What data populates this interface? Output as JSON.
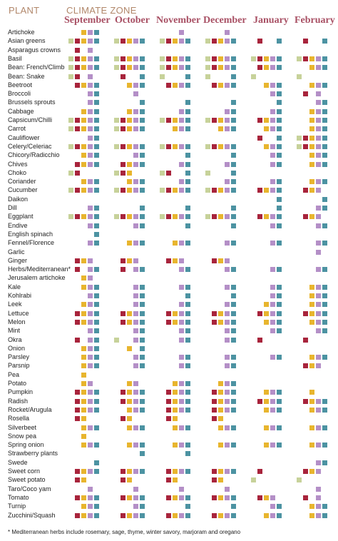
{
  "headers": {
    "plant": "PLANT",
    "climate_zone": "CLIMATE ZONE"
  },
  "months": [
    "September",
    "October",
    "November",
    "December",
    "January",
    "February"
  ],
  "zone_colors": [
    "#c7d29a",
    "#a8243c",
    "#e8b52e",
    "#b48fc7",
    "#4c93a2"
  ],
  "plants": [
    {
      "name": "Artichoke",
      "z": [
        [
          2,
          3,
          4
        ],
        [],
        [
          3
        ],
        [
          3
        ],
        [],
        []
      ]
    },
    {
      "name": "Asian greens",
      "z": [
        [
          0,
          1,
          2,
          3,
          4
        ],
        [
          0,
          1,
          2,
          3,
          4
        ],
        [
          0,
          1,
          2,
          3,
          4
        ],
        [
          0,
          1,
          2,
          3,
          4
        ],
        [
          1,
          4
        ],
        [
          1,
          4
        ]
      ]
    },
    {
      "name": "Asparagus crowns",
      "z": [
        [
          1,
          3
        ],
        [],
        [],
        [],
        [],
        []
      ]
    },
    {
      "name": "Basil",
      "z": [
        [
          0,
          1,
          2,
          3,
          4
        ],
        [
          0,
          1,
          2,
          3,
          4
        ],
        [
          0,
          1,
          2,
          3,
          4
        ],
        [
          0,
          1,
          2,
          3,
          4
        ],
        [
          0,
          1,
          2,
          3,
          4
        ],
        [
          0,
          1,
          2,
          3,
          4
        ]
      ]
    },
    {
      "name": "Bean: French/Climb",
      "z": [
        [
          0,
          1,
          2,
          3,
          4
        ],
        [
          0,
          1,
          2,
          3,
          4
        ],
        [
          0,
          1,
          2,
          3,
          4
        ],
        [
          0,
          1,
          2,
          3,
          4
        ],
        [
          1,
          2,
          3,
          4
        ],
        [
          2,
          3,
          4
        ]
      ]
    },
    {
      "name": "Bean: Snake",
      "z": [
        [
          0,
          1,
          3
        ],
        [
          1,
          4
        ],
        [
          0,
          4
        ],
        [
          0,
          4
        ],
        [
          0
        ],
        [
          0
        ]
      ]
    },
    {
      "name": "Beetroot",
      "z": [
        [
          1,
          2,
          3,
          4
        ],
        [
          2,
          3,
          4
        ],
        [
          1,
          2,
          3,
          4
        ],
        [
          1,
          2,
          3,
          4
        ],
        [
          2,
          3,
          4
        ],
        [
          2,
          3,
          4
        ]
      ]
    },
    {
      "name": "Broccoli",
      "z": [
        [
          3,
          4
        ],
        [
          3
        ],
        [],
        [],
        [
          3,
          4
        ],
        [
          1,
          3
        ]
      ]
    },
    {
      "name": "Brussels sprouts",
      "z": [
        [
          3,
          4
        ],
        [
          4
        ],
        [
          4
        ],
        [
          4
        ],
        [
          4
        ],
        [
          3,
          4
        ]
      ]
    },
    {
      "name": "Cabbage",
      "z": [
        [
          2,
          3,
          4
        ],
        [
          2,
          3,
          4
        ],
        [
          3,
          4
        ],
        [
          3,
          4
        ],
        [
          3,
          4
        ],
        [
          2,
          3,
          4
        ]
      ]
    },
    {
      "name": "Capsicum/Chilli",
      "z": [
        [
          0,
          1,
          2,
          3,
          4
        ],
        [
          0,
          1,
          2,
          3,
          4
        ],
        [
          0,
          1,
          2,
          3,
          4
        ],
        [
          0,
          1,
          2,
          3,
          4
        ],
        [
          1,
          2,
          3,
          4
        ],
        [
          2,
          3,
          4
        ]
      ]
    },
    {
      "name": "Carrot",
      "z": [
        [
          0,
          1,
          2,
          3,
          4
        ],
        [
          0,
          1,
          2,
          3,
          4
        ],
        [
          2,
          3,
          4
        ],
        [
          2,
          3,
          4
        ],
        [
          2,
          3,
          4
        ],
        [
          2,
          3,
          4
        ]
      ]
    },
    {
      "name": "Cauliflower",
      "z": [
        [
          3,
          4
        ],
        [],
        [],
        [],
        [
          1,
          4
        ],
        [
          0,
          1,
          2,
          3,
          4
        ]
      ]
    },
    {
      "name": "Celery/Celeriac",
      "z": [
        [
          0,
          1,
          2,
          3,
          4
        ],
        [
          0,
          1,
          2,
          3,
          4
        ],
        [
          0,
          1,
          2,
          3,
          4
        ],
        [
          0,
          1,
          2,
          3,
          4
        ],
        [
          2,
          3,
          4
        ],
        [
          0,
          1,
          2,
          3,
          4
        ]
      ]
    },
    {
      "name": "Chicory/Radicchio",
      "z": [
        [
          2,
          3,
          4
        ],
        [
          3,
          4
        ],
        [
          4
        ],
        [
          4
        ],
        [
          3,
          4
        ],
        [
          2,
          3,
          4
        ]
      ]
    },
    {
      "name": "Chives",
      "z": [
        [
          1,
          2,
          3,
          4
        ],
        [
          1,
          2,
          3,
          4
        ],
        [
          3,
          4
        ],
        [
          3,
          4
        ],
        [
          3,
          4
        ],
        [
          2,
          3,
          4
        ]
      ]
    },
    {
      "name": "Choko",
      "z": [
        [
          0,
          1
        ],
        [
          0,
          1,
          2
        ],
        [
          0,
          1,
          4
        ],
        [
          0,
          4
        ],
        [],
        []
      ]
    },
    {
      "name": "Coriander",
      "z": [
        [
          2,
          3,
          4
        ],
        [
          2,
          3,
          4
        ],
        [
          3,
          4
        ],
        [
          3,
          4
        ],
        [
          3,
          4
        ],
        [
          2,
          3,
          4
        ]
      ]
    },
    {
      "name": "Cucumber",
      "z": [
        [
          0,
          1,
          2,
          3,
          4
        ],
        [
          0,
          1,
          2,
          3,
          4
        ],
        [
          0,
          1,
          2,
          3,
          4
        ],
        [
          0,
          1,
          2,
          3,
          4
        ],
        [
          1,
          2,
          3,
          4
        ],
        [
          1,
          2,
          3
        ]
      ]
    },
    {
      "name": "Daikon",
      "z": [
        [],
        [],
        [],
        [],
        [
          4
        ],
        [
          4
        ]
      ]
    },
    {
      "name": "Dill",
      "z": [
        [
          3,
          4
        ],
        [
          4
        ],
        [
          4
        ],
        [
          4
        ],
        [
          4
        ],
        [
          3,
          4
        ]
      ]
    },
    {
      "name": "Eggplant",
      "z": [
        [
          0,
          1,
          2,
          3,
          4
        ],
        [
          0,
          1,
          2,
          3,
          4
        ],
        [
          0,
          1,
          2,
          3,
          4
        ],
        [
          0,
          1,
          2,
          3,
          4
        ],
        [
          1,
          2,
          3,
          4
        ],
        [
          1,
          2,
          3
        ]
      ]
    },
    {
      "name": "Endive",
      "z": [
        [
          3,
          4
        ],
        [
          3,
          4
        ],
        [
          4
        ],
        [
          4
        ],
        [
          3,
          4
        ],
        [
          3,
          4
        ]
      ]
    },
    {
      "name": "English spinach",
      "z": [
        [
          4
        ],
        [],
        [],
        [],
        [],
        []
      ]
    },
    {
      "name": "Fennel/Florence",
      "z": [
        [
          3,
          4
        ],
        [
          2,
          3,
          4
        ],
        [
          2,
          3,
          4
        ],
        [
          3,
          4
        ],
        [
          3,
          4
        ],
        [
          3,
          4
        ]
      ]
    },
    {
      "name": "Garlic",
      "z": [
        [],
        [],
        [],
        [],
        [],
        [
          3
        ]
      ]
    },
    {
      "name": "Ginger",
      "z": [
        [
          1,
          2,
          3
        ],
        [
          1,
          2,
          3
        ],
        [
          1,
          2,
          3
        ],
        [
          1,
          2,
          3
        ],
        [],
        []
      ]
    },
    {
      "name": "Herbs/Mediterranean*",
      "z": [
        [
          1,
          3,
          4
        ],
        [
          1,
          3,
          4
        ],
        [
          3,
          4
        ],
        [
          3,
          4
        ],
        [
          3,
          4
        ],
        [
          3,
          4
        ]
      ]
    },
    {
      "name": "Jerusalem artichoke",
      "z": [
        [
          2,
          3
        ],
        [],
        [],
        [],
        [],
        []
      ]
    },
    {
      "name": "Kale",
      "z": [
        [
          2,
          3,
          4
        ],
        [
          3,
          4
        ],
        [
          3,
          4
        ],
        [
          3,
          4
        ],
        [
          3,
          4
        ],
        [
          2,
          3,
          4
        ]
      ]
    },
    {
      "name": "Kohlrabi",
      "z": [
        [
          3,
          4
        ],
        [
          3,
          4
        ],
        [
          4
        ],
        [
          4
        ],
        [
          3,
          4
        ],
        [
          2,
          3,
          4
        ]
      ]
    },
    {
      "name": "Leek",
      "z": [
        [
          2,
          3,
          4
        ],
        [
          3,
          4
        ],
        [
          3,
          4
        ],
        [
          3,
          4
        ],
        [
          2,
          3,
          4
        ],
        [
          2,
          3,
          4
        ]
      ]
    },
    {
      "name": "Lettuce",
      "z": [
        [
          1,
          2,
          3,
          4
        ],
        [
          1,
          2,
          3,
          4
        ],
        [
          1,
          2,
          3,
          4
        ],
        [
          1,
          2,
          3,
          4
        ],
        [
          1,
          2,
          3,
          4
        ],
        [
          1,
          2,
          3,
          4
        ]
      ]
    },
    {
      "name": "Melon",
      "z": [
        [
          1,
          2,
          3,
          4
        ],
        [
          1,
          2,
          3,
          4
        ],
        [
          1,
          2,
          3,
          4
        ],
        [
          1,
          2,
          3,
          4
        ],
        [
          2,
          3,
          4
        ],
        [
          2,
          3,
          4
        ]
      ]
    },
    {
      "name": "Mint",
      "z": [
        [
          3,
          4
        ],
        [
          3,
          4
        ],
        [
          3,
          4
        ],
        [
          3,
          4
        ],
        [
          3,
          4
        ],
        [
          3,
          4
        ]
      ]
    },
    {
      "name": "Okra",
      "z": [
        [
          1,
          3,
          4
        ],
        [
          0,
          3,
          4
        ],
        [
          3,
          4
        ],
        [
          3,
          4
        ],
        [
          1
        ],
        [
          1
        ]
      ]
    },
    {
      "name": "Onion",
      "z": [
        [
          2,
          3,
          4
        ],
        [
          2,
          4
        ],
        [],
        [],
        [],
        []
      ]
    },
    {
      "name": "Parsley",
      "z": [
        [
          2,
          3,
          4
        ],
        [
          3,
          4
        ],
        [
          3,
          4
        ],
        [
          3,
          4
        ],
        [
          3,
          4
        ],
        [
          2,
          3,
          4
        ]
      ]
    },
    {
      "name": "Parsnip",
      "z": [
        [
          2,
          3,
          4
        ],
        [
          3,
          4
        ],
        [
          3,
          4
        ],
        [
          3,
          4
        ],
        [],
        [
          1,
          2,
          3
        ]
      ]
    },
    {
      "name": "Pea",
      "z": [
        [
          2
        ],
        [],
        [],
        [],
        [],
        []
      ]
    },
    {
      "name": "Potato",
      "z": [
        [
          2,
          3
        ],
        [
          2,
          3
        ],
        [
          2,
          3,
          4
        ],
        [
          2,
          3,
          4
        ],
        [],
        []
      ]
    },
    {
      "name": "Pumpkin",
      "z": [
        [
          1,
          2,
          3,
          4
        ],
        [
          1,
          2,
          3,
          4
        ],
        [
          1,
          2,
          3,
          4
        ],
        [
          1,
          2,
          3,
          4
        ],
        [
          2,
          3,
          4
        ],
        [
          2
        ]
      ]
    },
    {
      "name": "Radish",
      "z": [
        [
          1,
          2,
          3,
          4
        ],
        [
          1,
          2,
          3,
          4
        ],
        [
          1,
          2,
          3,
          4
        ],
        [
          1,
          2,
          3,
          4
        ],
        [
          1,
          2,
          3,
          4
        ],
        [
          1,
          2,
          3,
          4
        ]
      ]
    },
    {
      "name": "Rocket/Arugula",
      "z": [
        [
          1,
          2,
          3,
          4
        ],
        [
          2,
          3,
          4
        ],
        [
          1,
          2,
          3,
          4
        ],
        [
          1,
          2,
          3,
          4
        ],
        [
          2,
          3,
          4
        ],
        [
          2,
          3,
          4
        ]
      ]
    },
    {
      "name": "Rosella",
      "z": [
        [
          1,
          2
        ],
        [
          1,
          2
        ],
        [
          1,
          2
        ],
        [
          1,
          2
        ],
        [],
        []
      ]
    },
    {
      "name": "Silverbeet",
      "z": [
        [
          2,
          3,
          4
        ],
        [
          2,
          3,
          4
        ],
        [
          2,
          3,
          4
        ],
        [
          2,
          3,
          4
        ],
        [
          2,
          3,
          4
        ],
        [
          2,
          3,
          4
        ]
      ]
    },
    {
      "name": "Snow pea",
      "z": [
        [
          2
        ],
        [],
        [],
        [],
        [],
        []
      ]
    },
    {
      "name": "Spring onion",
      "z": [
        [
          2,
          3,
          4
        ],
        [
          2,
          3,
          4
        ],
        [
          2,
          3,
          4
        ],
        [
          2,
          3,
          4
        ],
        [
          2,
          3,
          4
        ],
        [
          2,
          3,
          4
        ]
      ]
    },
    {
      "name": "Strawberry plants",
      "z": [
        [],
        [
          4
        ],
        [
          4
        ],
        [],
        [],
        []
      ]
    },
    {
      "name": "Swede",
      "z": [
        [
          4
        ],
        [],
        [],
        [],
        [],
        [
          3,
          4
        ]
      ]
    },
    {
      "name": "Sweet corn",
      "z": [
        [
          1,
          2,
          3,
          4
        ],
        [
          1,
          2,
          3,
          4
        ],
        [
          1,
          2,
          3,
          4
        ],
        [
          1,
          2,
          3,
          4
        ],
        [
          1
        ],
        [
          1,
          2,
          3
        ]
      ]
    },
    {
      "name": "Sweet potato",
      "z": [
        [
          1,
          2
        ],
        [
          1,
          2
        ],
        [
          1,
          2
        ],
        [
          1,
          2
        ],
        [
          0
        ],
        [
          0
        ]
      ]
    },
    {
      "name": "Taro/Coco yam",
      "z": [
        [
          3
        ],
        [
          3
        ],
        [
          3
        ],
        [
          3
        ],
        [],
        [
          3
        ]
      ]
    },
    {
      "name": "Tomato",
      "z": [
        [
          1,
          2,
          3,
          4
        ],
        [
          1,
          2,
          3,
          4
        ],
        [
          1,
          2,
          3,
          4
        ],
        [
          1,
          2,
          3,
          4
        ],
        [
          1,
          2,
          3
        ],
        [
          1,
          3
        ]
      ]
    },
    {
      "name": "Turnip",
      "z": [
        [
          2,
          3,
          4
        ],
        [
          3,
          4
        ],
        [
          4
        ],
        [
          4
        ],
        [
          3,
          4
        ],
        [
          2,
          3,
          4
        ]
      ]
    },
    {
      "name": "Zucchini/Squash",
      "z": [
        [
          1,
          2,
          3,
          4
        ],
        [
          1,
          2,
          3,
          4
        ],
        [
          1,
          2,
          3,
          4
        ],
        [
          1,
          2,
          3,
          4
        ],
        [
          2,
          3,
          4
        ],
        [
          2,
          3,
          4
        ]
      ]
    }
  ],
  "footnote": "* Mediterranean herbs include rosemary, sage, thyme, winter savory, marjoram and oregano"
}
